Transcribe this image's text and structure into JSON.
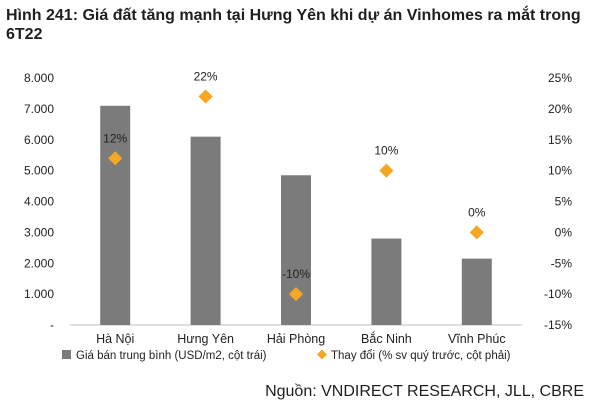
{
  "title": "Hình 241: Giá đất tăng mạnh tại Hưng Yên khi dự án Vinhomes ra mắt trong 6T22",
  "source": "Nguồn: VNDIRECT RESEARCH, JLL, CBRE",
  "colors": {
    "bar": "#7b7b7b",
    "marker": "#f5a623",
    "axis": "#bfbfbf"
  },
  "chart_data": {
    "type": "bar",
    "categories": [
      "Hà Nội",
      "Hưng Yên",
      "Hải Phòng",
      "Bắc Ninh",
      "Vĩnh Phúc"
    ],
    "left_axis": {
      "ylim": [
        0,
        8000
      ],
      "tick_labels": [
        "-",
        "1.000",
        "2.000",
        "3.000",
        "4.000",
        "5.000",
        "6.000",
        "7.000",
        "8.000"
      ]
    },
    "right_axis": {
      "ylim": [
        -15,
        25
      ],
      "tick_labels": [
        "-15%",
        "-10%",
        "-5%",
        "0%",
        "5%",
        "10%",
        "15%",
        "20%",
        "25%"
      ]
    },
    "series": [
      {
        "name": "Giá bán trung bình (USD/m2, cột trái)",
        "type": "bar",
        "axis": "left",
        "values": [
          7100,
          6100,
          4850,
          2800,
          2150
        ]
      },
      {
        "name": "Thay đổi (% sv quý trước, cột phải)",
        "type": "scatter",
        "axis": "right",
        "values": [
          12,
          22,
          -10,
          10,
          0
        ],
        "labels": [
          "12%",
          "22%",
          "-10%",
          "10%",
          "0%"
        ]
      }
    ],
    "legend_position": "bottom",
    "grid": false
  }
}
